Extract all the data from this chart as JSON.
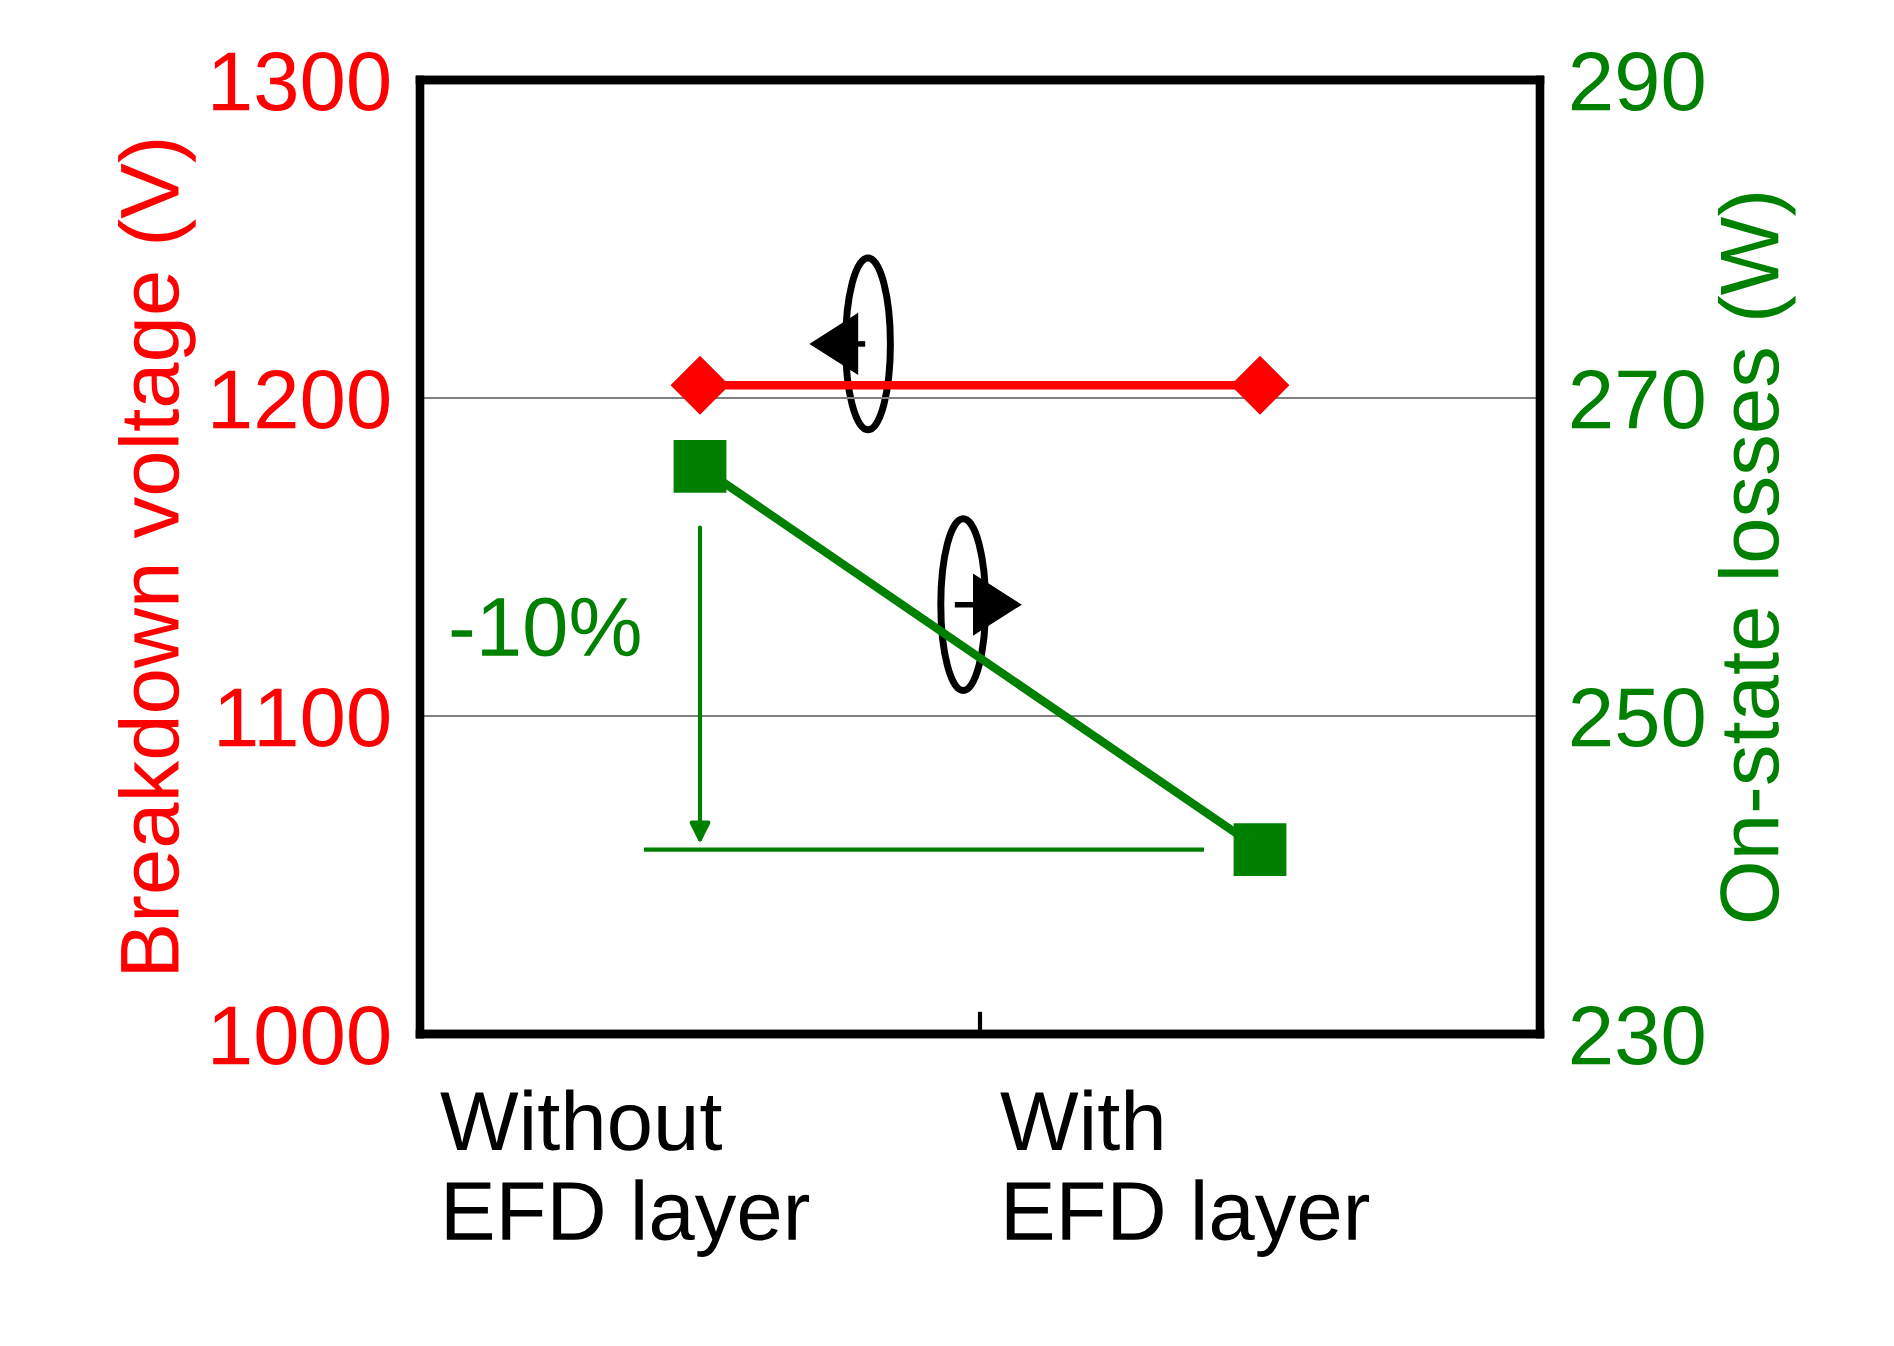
{
  "chart_data": {
    "type": "line",
    "categories": [
      "Without\nEFD layer",
      "With\nEFD layer"
    ],
    "ylabel": "Breakdown voltage (V)",
    "y2label": "On-state losses (W)",
    "ylim": [
      1000,
      1300
    ],
    "yticks": [
      1000,
      1100,
      1200,
      1300
    ],
    "y2lim": [
      230,
      290
    ],
    "y2ticks": [
      230,
      250,
      270,
      290
    ],
    "grid": "y",
    "legend": false,
    "series": [
      {
        "color": "#ff0000",
        "values": [
          1204,
          1204
        ],
        "marker": "diamond"
      },
      {
        "color": "#008000",
        "values": [
          265.7,
          241.6
        ],
        "marker": "square",
        "axis": "y2"
      }
    ],
    "ref_lines": [
      {
        "axis": "y2",
        "value": 241.6,
        "color": "#008000"
      }
    ],
    "annotations": [
      "-10%"
    ]
  }
}
